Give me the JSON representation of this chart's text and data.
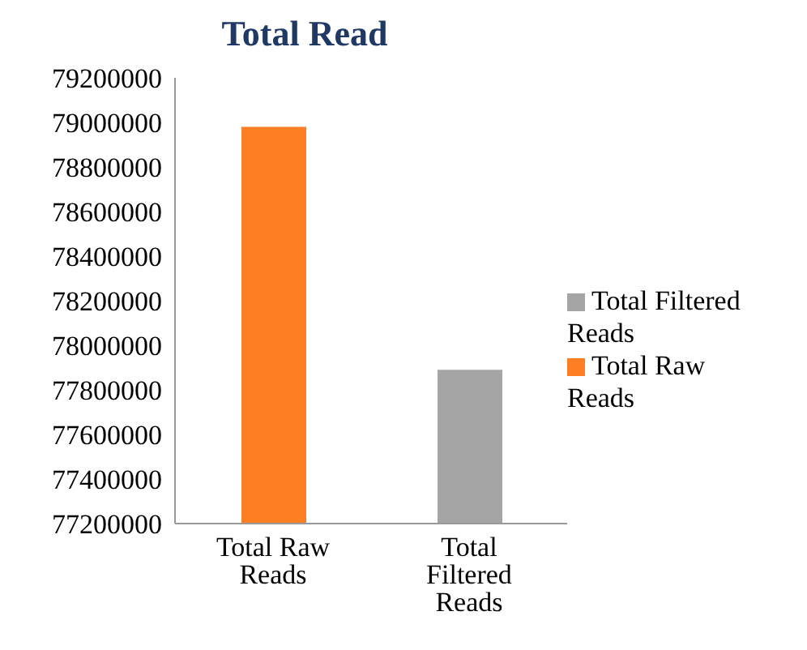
{
  "chart_data": {
    "type": "bar",
    "title": "Total Read",
    "categories": [
      "Total Raw Reads",
      "Total Filtered Reads"
    ],
    "series": [
      {
        "name": "Total Raw Reads",
        "color": "#fd7f23",
        "values": [
          78980000,
          null
        ]
      },
      {
        "name": "Total Filtered Reads",
        "color": "#a5a5a5",
        "values": [
          null,
          77890000
        ]
      }
    ],
    "ylim": [
      77200000,
      79200000
    ],
    "yticks": [
      77200000,
      77400000,
      77600000,
      77800000,
      78000000,
      78200000,
      78400000,
      78600000,
      78800000,
      79000000,
      79200000
    ],
    "grid": false,
    "legend": "right"
  }
}
